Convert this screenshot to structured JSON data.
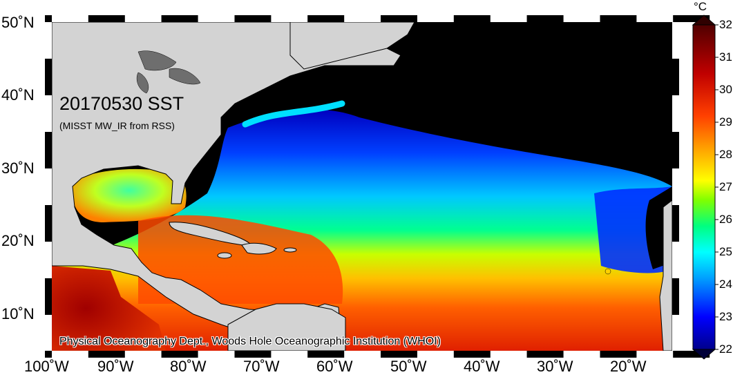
{
  "map": {
    "title": "20170530 SST",
    "subtitle": "(MISST MW_IR from RSS)",
    "credit": "Physical Oceanography Dept., Woods Hole Oceanographic Institution (WHOI)",
    "lon_labels": [
      "100˚W",
      "90˚W",
      "80˚W",
      "70˚W",
      "60˚W",
      "50˚W",
      "40˚W",
      "30˚W",
      "20˚W"
    ],
    "lat_labels": [
      "50˚N",
      "40˚N",
      "30˚N",
      "20˚N",
      "10˚N"
    ],
    "colors": {
      "land": "#d3d3d3",
      "lakes": "#6e6e6e",
      "missing": "#000000"
    }
  },
  "colorbar": {
    "unit": "°C",
    "ticks": [
      "32",
      "31",
      "30",
      "29",
      "28",
      "27",
      "26",
      "25",
      "24",
      "23",
      "22"
    ],
    "min": 22,
    "max": 32,
    "colors": [
      "#00008b",
      "#0000ff",
      "#00a0ff",
      "#00ffff",
      "#00ff80",
      "#80ff00",
      "#ffff00",
      "#ffa000",
      "#ff4000",
      "#c00000",
      "#500000"
    ]
  }
}
